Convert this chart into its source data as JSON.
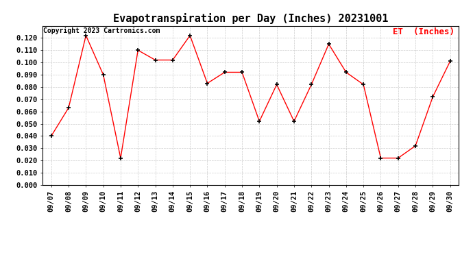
{
  "title": "Evapotranspiration per Day (Inches) 20231001",
  "copyright_text": "Copyright 2023 Cartronics.com",
  "legend_label": "ET  (Inches)",
  "dates": [
    "09/07",
    "09/08",
    "09/09",
    "09/10",
    "09/11",
    "09/12",
    "09/13",
    "09/14",
    "09/15",
    "09/16",
    "09/17",
    "09/18",
    "09/19",
    "09/20",
    "09/21",
    "09/22",
    "09/23",
    "09/24",
    "09/25",
    "09/26",
    "09/27",
    "09/28",
    "09/29",
    "09/30"
  ],
  "values": [
    0.04,
    0.063,
    0.122,
    0.09,
    0.022,
    0.11,
    0.102,
    0.102,
    0.122,
    0.083,
    0.092,
    0.092,
    0.052,
    0.082,
    0.052,
    0.082,
    0.115,
    0.092,
    0.082,
    0.022,
    0.022,
    0.032,
    0.072,
    0.101
  ],
  "line_color": "red",
  "marker_color": "black",
  "marker": "+",
  "ylim": [
    0.0,
    0.13
  ],
  "yticks": [
    0.0,
    0.01,
    0.02,
    0.03,
    0.04,
    0.05,
    0.06,
    0.07,
    0.08,
    0.09,
    0.1,
    0.11,
    0.12
  ],
  "background_color": "#ffffff",
  "grid_color": "#cccccc",
  "title_fontsize": 11,
  "copyright_fontsize": 7,
  "legend_fontsize": 9,
  "tick_fontsize": 7.5
}
